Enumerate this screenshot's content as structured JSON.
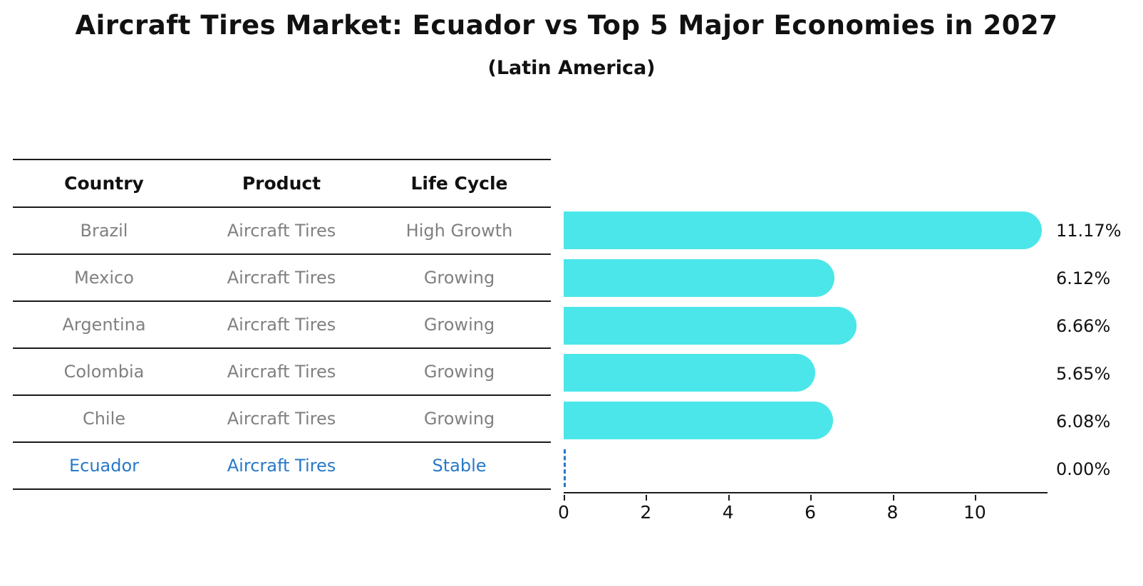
{
  "title": "Aircraft Tires Market: Ecuador vs Top 5 Major Economies in 2027",
  "subtitle": "(Latin America)",
  "table": {
    "headers": [
      "Country",
      "Product",
      "Life Cycle"
    ],
    "rows": [
      {
        "country": "Brazil",
        "product": "Aircraft Tires",
        "life_cycle": "High Growth",
        "highlight": false
      },
      {
        "country": "Mexico",
        "product": "Aircraft Tires",
        "life_cycle": "Growing",
        "highlight": false
      },
      {
        "country": "Argentina",
        "product": "Aircraft Tires",
        "life_cycle": "Growing",
        "highlight": false
      },
      {
        "country": "Colombia",
        "product": "Aircraft Tires",
        "life_cycle": "Growing",
        "highlight": false
      },
      {
        "country": "Chile",
        "product": "Aircraft Tires",
        "life_cycle": "Growing",
        "highlight": false
      },
      {
        "country": "Ecuador",
        "product": "Aircraft Tires",
        "life_cycle": "Stable",
        "highlight": true
      }
    ]
  },
  "chart_data": {
    "type": "bar",
    "orientation": "horizontal",
    "title": "Aircraft Tires Market: Ecuador vs Top 5 Major Economies in 2027",
    "subtitle": "(Latin America)",
    "categories": [
      "Brazil",
      "Mexico",
      "Argentina",
      "Colombia",
      "Chile",
      "Ecuador"
    ],
    "values": [
      11.17,
      6.12,
      6.66,
      5.65,
      6.08,
      0.0
    ],
    "value_labels": [
      "11.17%",
      "6.12%",
      "6.66%",
      "5.65%",
      "6.08%",
      "0.00%"
    ],
    "xlabel": "",
    "ylabel": "",
    "xlim": [
      0,
      11.77
    ],
    "x_ticks": [
      0,
      2,
      4,
      6,
      8,
      10
    ],
    "grid": false,
    "legend": false,
    "value_label_position": "right",
    "zero_marker_style": "dashed-line"
  },
  "colors": {
    "bar": "#4BE6E9",
    "highlight_text": "#2878C8",
    "row_text": "#808080",
    "header_text": "#111111",
    "axis": "#1a1a1a"
  }
}
